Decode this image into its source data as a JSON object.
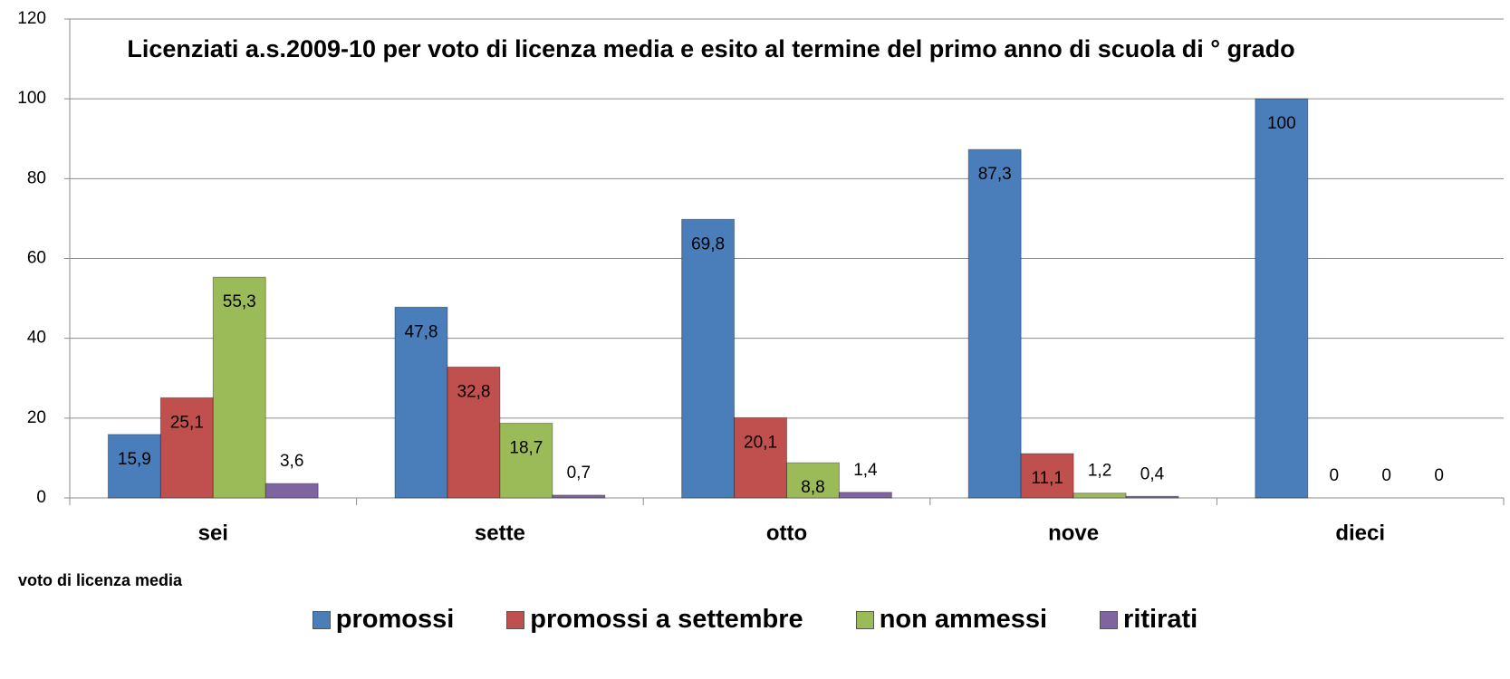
{
  "chart_data": {
    "type": "bar",
    "title": "Licenziati a.s.2009-10 per voto di licenza media e esito al termine del primo anno di scuola di ° grado",
    "x_label": "voto di licenza media",
    "categories": [
      "sei",
      "sette",
      "otto",
      "nove",
      "dieci"
    ],
    "series": [
      {
        "name": "promossi",
        "color": "#4a7ebb",
        "values": [
          15.9,
          47.8,
          69.8,
          87.3,
          100
        ],
        "value_labels": [
          "15,9",
          "47,8",
          "69,8",
          "87,3",
          "100"
        ]
      },
      {
        "name": "promossi a settembre",
        "color": "#c0504d",
        "values": [
          25.1,
          32.8,
          20.1,
          11.1,
          0
        ],
        "value_labels": [
          "25,1",
          "32,8",
          "20,1",
          "11,1",
          "0"
        ]
      },
      {
        "name": "non ammessi",
        "color": "#9bbb59",
        "values": [
          55.3,
          18.7,
          8.8,
          1.2,
          0
        ],
        "value_labels": [
          "55,3",
          "18,7",
          "8,8",
          "1,2",
          "0"
        ]
      },
      {
        "name": "ritirati",
        "color": "#8064a2",
        "values": [
          3.6,
          0.7,
          1.4,
          0.4,
          0
        ],
        "value_labels": [
          "3,6",
          "0,7",
          "1,4",
          "0,4",
          "0"
        ]
      }
    ],
    "ylim": [
      0,
      120
    ],
    "yticks": [
      0,
      20,
      40,
      60,
      80,
      100,
      120
    ],
    "grid": true,
    "legend": "bottom"
  }
}
